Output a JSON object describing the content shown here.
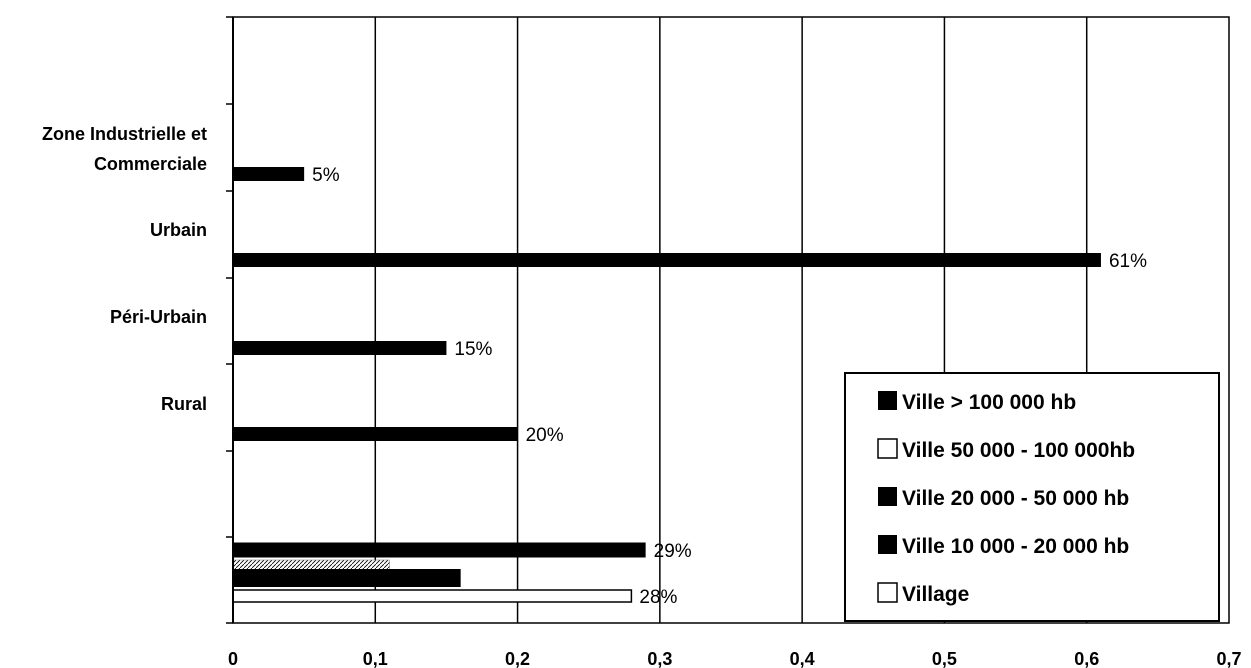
{
  "chart_data": {
    "type": "bar",
    "orientation": "horizontal",
    "xlim": [
      0,
      0.7
    ],
    "x_ticks": [
      "0",
      "0,1",
      "0,2",
      "0,3",
      "0,4",
      "0,5",
      "0,6",
      "0,7"
    ],
    "category_labels": [
      {
        "label": "Zone Industrielle et\nCommerciale"
      },
      {
        "label": "Urbain"
      },
      {
        "label": "Péri-Urbain"
      },
      {
        "label": "Rural"
      }
    ],
    "bars": [
      {
        "row": 0,
        "value": 0.05,
        "label": "5%",
        "style": "filled"
      },
      {
        "row": 1,
        "value": 0.61,
        "label": "61%",
        "style": "filled"
      },
      {
        "row": 2,
        "value": 0.15,
        "label": "15%",
        "style": "filled"
      },
      {
        "row": 3,
        "value": 0.2,
        "label": "20%",
        "style": "filled"
      },
      {
        "row": 4,
        "value": 0.29,
        "label": "29%",
        "style": "filled",
        "slot": 0
      },
      {
        "row": 4,
        "value": 0.11,
        "label": "",
        "style": "hatched",
        "slot": 1
      },
      {
        "row": 4,
        "value": 0.16,
        "label": "",
        "style": "filled",
        "slot": 2
      },
      {
        "row": 4,
        "value": 0.28,
        "label": "28%",
        "style": "outline",
        "slot": 3
      }
    ],
    "legend": {
      "placement": "bottom-right",
      "entries": [
        {
          "label": "Ville > 100 000 hb",
          "style": "filled"
        },
        {
          "label": "Ville 50 000 - 100 000hb",
          "style": "outline"
        },
        {
          "label": "Ville 20 000 - 50 000 hb",
          "style": "filled"
        },
        {
          "label": "Ville 10 000 - 20 000 hb",
          "style": "filled"
        },
        {
          "label": "Village",
          "style": "outline"
        }
      ]
    },
    "grid": true,
    "colors": {
      "fill": "#000000",
      "outline": "#000000",
      "background": "#ffffff"
    }
  }
}
